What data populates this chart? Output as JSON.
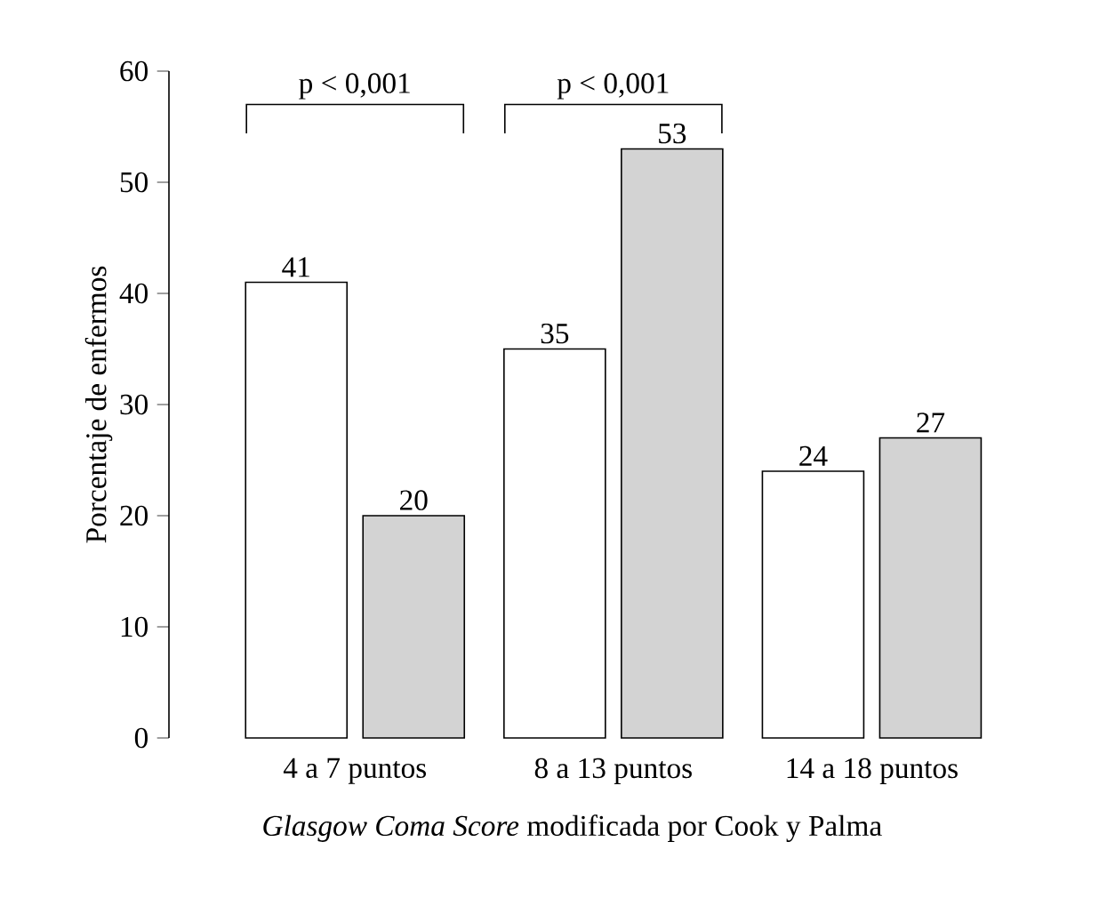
{
  "chart_data": {
    "type": "bar",
    "xlabel": "*Glasgow Coma Score* modificada por Cook y Palma",
    "ylabel": "Porcentaje de enfermos",
    "categories": [
      "4 a 7 puntos",
      "8 a 13 puntos",
      "14 a 18 puntos"
    ],
    "series": [
      {
        "color": "#ffffff",
        "values": [
          41,
          35,
          24
        ]
      },
      {
        "color": "#d3d3d3",
        "values": [
          20,
          53,
          27
        ]
      }
    ],
    "ylim": [
      0,
      60
    ],
    "yticks": [
      0,
      10,
      20,
      30,
      40,
      50,
      60
    ],
    "data_labels": true,
    "grid": false,
    "annotations": [
      "p < 0,001",
      "p < 0,001"
    ]
  }
}
